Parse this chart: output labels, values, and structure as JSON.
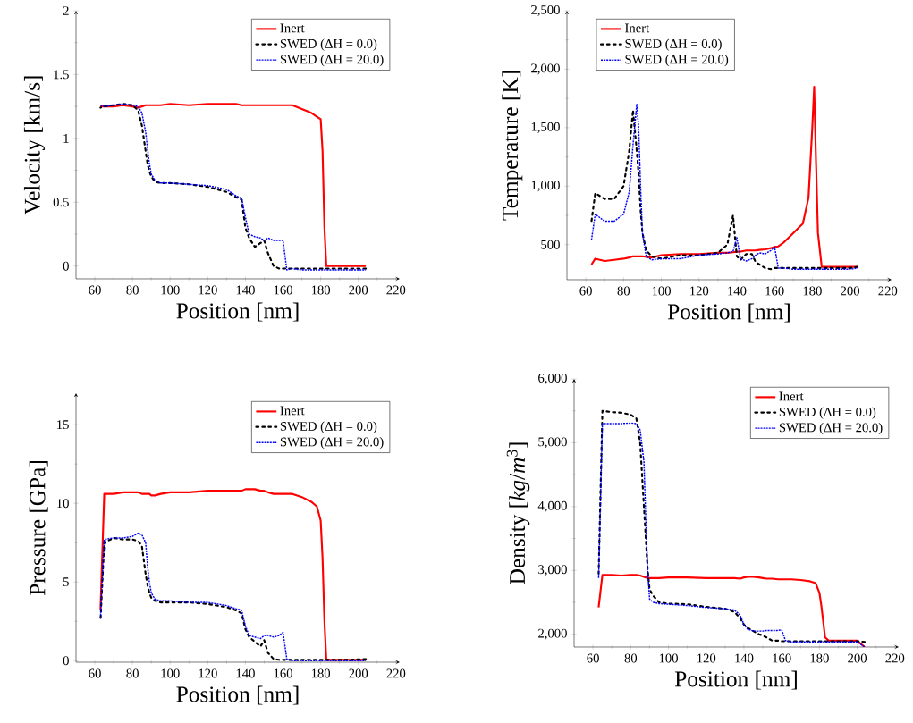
{
  "chart_data": [
    {
      "type": "line",
      "xlabel": "Position [nm]",
      "ylabel": "Velocity [km/s]",
      "xlim": [
        50,
        222
      ],
      "ylim": [
        -0.1,
        2
      ],
      "xticks": [
        60,
        80,
        100,
        120,
        140,
        160,
        180,
        200,
        220
      ],
      "yticks": [
        0,
        0.5,
        1,
        1.5,
        2
      ],
      "legend": "top right",
      "x": [
        63,
        65,
        70,
        75,
        80,
        83,
        85,
        87,
        88,
        89,
        90,
        92,
        95,
        100,
        110,
        120,
        130,
        135,
        138,
        140,
        142,
        145,
        148,
        150,
        152,
        155,
        158,
        160,
        162,
        165,
        170,
        175,
        178,
        180,
        181,
        182,
        183,
        185,
        190,
        195,
        200,
        204
      ],
      "series": [
        {
          "name": "Inert",
          "color": "#ff0000",
          "line_style": "solid",
          "values": [
            1.25,
            1.25,
            1.25,
            1.26,
            1.25,
            1.24,
            1.25,
            1.26,
            1.26,
            1.26,
            1.26,
            1.26,
            1.26,
            1.27,
            1.26,
            1.27,
            1.27,
            1.27,
            1.26,
            1.26,
            1.26,
            1.26,
            1.26,
            1.26,
            1.26,
            1.26,
            1.26,
            1.26,
            1.26,
            1.26,
            1.23,
            1.2,
            1.17,
            1.15,
            0.9,
            0.3,
            0.0,
            0.0,
            0.0,
            0.0,
            0.0,
            0.0
          ]
        },
        {
          "name": "SWED (ΔH = 0.0)",
          "color": "#000000",
          "line_style": "dashed",
          "values": [
            1.24,
            1.25,
            1.26,
            1.27,
            1.26,
            1.22,
            1.1,
            0.9,
            0.8,
            0.74,
            0.7,
            0.66,
            0.65,
            0.65,
            0.64,
            0.62,
            0.58,
            0.54,
            0.52,
            0.3,
            0.22,
            0.15,
            0.18,
            0.2,
            0.1,
            0.0,
            -0.02,
            -0.02,
            -0.02,
            -0.02,
            -0.02,
            -0.02,
            -0.02,
            -0.02,
            -0.02,
            -0.02,
            -0.02,
            -0.02,
            -0.02,
            -0.02,
            -0.02,
            -0.02
          ]
        },
        {
          "name": "SWED (ΔH = 20.0)",
          "color": "#0000ff",
          "line_style": "dotted",
          "values": [
            1.26,
            1.25,
            1.26,
            1.27,
            1.26,
            1.25,
            1.2,
            1.05,
            0.92,
            0.8,
            0.72,
            0.67,
            0.65,
            0.65,
            0.64,
            0.63,
            0.6,
            0.55,
            0.53,
            0.38,
            0.25,
            0.23,
            0.22,
            0.2,
            0.22,
            0.2,
            0.2,
            0.2,
            -0.03,
            -0.02,
            -0.03,
            -0.03,
            -0.03,
            -0.03,
            -0.03,
            -0.03,
            -0.03,
            -0.03,
            -0.03,
            -0.03,
            -0.03,
            -0.03
          ]
        }
      ]
    },
    {
      "type": "line",
      "xlabel": "Position [nm]",
      "ylabel": "Temperature [K]",
      "xlim": [
        50,
        222
      ],
      "ylim": [
        200,
        2500
      ],
      "xticks": [
        60,
        80,
        100,
        120,
        140,
        160,
        180,
        200,
        220
      ],
      "yticks": [
        500,
        {
          "value": 1000,
          "label": "1,000"
        },
        {
          "value": 1500,
          "label": "1,500"
        },
        {
          "value": 2000,
          "label": "2,000"
        },
        {
          "value": 2500,
          "label": "2,500"
        }
      ],
      "legend": "top left",
      "x": [
        63,
        65,
        70,
        75,
        80,
        83,
        85,
        87,
        88,
        89,
        90,
        92,
        95,
        100,
        110,
        120,
        130,
        135,
        138,
        140,
        142,
        145,
        148,
        150,
        152,
        155,
        158,
        160,
        162,
        165,
        170,
        175,
        178,
        180,
        181,
        182,
        183,
        185,
        190,
        195,
        200,
        204
      ],
      "series": [
        {
          "name": "Inert",
          "color": "#ff0000",
          "line_style": "solid",
          "values": [
            330,
            380,
            360,
            370,
            380,
            390,
            400,
            400,
            400,
            400,
            400,
            395,
            390,
            410,
            420,
            420,
            430,
            430,
            435,
            440,
            440,
            450,
            450,
            450,
            455,
            460,
            470,
            480,
            485,
            520,
            600,
            680,
            900,
            1500,
            1850,
            1200,
            600,
            310,
            310,
            310,
            310,
            310
          ]
        },
        {
          "name": "SWED (ΔH = 0.0)",
          "color": "#000000",
          "line_style": "dashed",
          "values": [
            700,
            940,
            890,
            890,
            1000,
            1300,
            1650,
            1300,
            1100,
            800,
            600,
            450,
            400,
            380,
            410,
            410,
            430,
            500,
            750,
            400,
            370,
            420,
            420,
            350,
            330,
            300,
            290,
            300,
            300,
            300,
            300,
            300,
            300,
            300,
            300,
            300,
            300,
            300,
            300,
            300,
            300,
            310
          ]
        },
        {
          "name": "SWED (ΔH = 20.0)",
          "color": "#0000ff",
          "line_style": "dotted",
          "values": [
            540,
            760,
            700,
            700,
            760,
            950,
            1350,
            1700,
            1500,
            1000,
            600,
            400,
            370,
            380,
            380,
            410,
            420,
            430,
            440,
            560,
            380,
            360,
            380,
            410,
            430,
            420,
            450,
            480,
            300,
            300,
            290,
            290,
            290,
            290,
            290,
            290,
            290,
            290,
            290,
            290,
            290,
            300
          ]
        }
      ]
    },
    {
      "type": "line",
      "xlabel": "Position [nm]",
      "ylabel": "Pressure [GPa]",
      "xlim": [
        50,
        222
      ],
      "ylim": [
        -0.1,
        17
      ],
      "xticks": [
        60,
        80,
        100,
        120,
        140,
        160,
        180,
        200,
        220
      ],
      "yticks": [
        0,
        5,
        10,
        15
      ],
      "legend": "top right",
      "x": [
        63,
        65,
        70,
        75,
        80,
        83,
        85,
        87,
        88,
        89,
        90,
        92,
        95,
        100,
        110,
        120,
        130,
        135,
        138,
        140,
        142,
        145,
        148,
        150,
        152,
        155,
        158,
        160,
        162,
        165,
        170,
        175,
        178,
        180,
        181,
        182,
        183,
        185,
        190,
        195,
        200,
        204
      ],
      "series": [
        {
          "name": "Inert",
          "color": "#ff0000",
          "line_style": "solid",
          "values": [
            3.2,
            10.6,
            10.6,
            10.7,
            10.7,
            10.7,
            10.6,
            10.6,
            10.6,
            10.6,
            10.5,
            10.5,
            10.6,
            10.7,
            10.7,
            10.8,
            10.8,
            10.8,
            10.8,
            10.9,
            10.9,
            10.9,
            10.8,
            10.8,
            10.7,
            10.6,
            10.6,
            10.6,
            10.6,
            10.6,
            10.4,
            10.1,
            9.8,
            8.9,
            6.5,
            2.5,
            0.05,
            0.05,
            0.05,
            0.05,
            0.05,
            0.05
          ]
        },
        {
          "name": "SWED (ΔH = 0.0)",
          "color": "#000000",
          "line_style": "dashed",
          "x": [
            63,
            65,
            70,
            75,
            80,
            83,
            85,
            87,
            88,
            89,
            90,
            92,
            95,
            100,
            110,
            120,
            130,
            135,
            138,
            140,
            142,
            145,
            148,
            150,
            152,
            155,
            158,
            160,
            162,
            165,
            170,
            175,
            178,
            180,
            181,
            182,
            183,
            185,
            190,
            195,
            204
          ],
          "values": [
            2.5,
            7.5,
            7.8,
            7.7,
            7.7,
            7.6,
            7.3,
            5.5,
            4.8,
            4.3,
            4.0,
            3.8,
            3.7,
            3.7,
            3.7,
            3.6,
            3.4,
            3.2,
            3.0,
            2.0,
            1.5,
            1.2,
            0.9,
            1.3,
            0.5,
            0.1,
            0.05,
            0.05,
            0.05,
            0.05,
            0.05,
            0.05,
            0.05,
            0.05,
            0.05,
            0.05,
            0.05,
            0.05,
            0.05,
            0.05,
            0.1
          ]
        },
        {
          "name": "SWED (ΔH = 20.0)",
          "color": "#0000ff",
          "line_style": "dotted",
          "values": [
            2.7,
            7.7,
            7.8,
            7.8,
            7.9,
            8.1,
            8.0,
            7.5,
            6.0,
            5.0,
            4.3,
            3.9,
            3.8,
            3.8,
            3.7,
            3.7,
            3.5,
            3.3,
            3.2,
            2.2,
            1.6,
            1.5,
            1.4,
            1.6,
            1.6,
            1.5,
            1.6,
            1.8,
            0.1,
            0.0,
            0.0,
            0.0,
            0.0,
            0.0,
            0.0,
            0.0,
            0.0,
            0.0,
            0.0,
            0.0,
            0.0,
            0.0
          ]
        }
      ]
    },
    {
      "type": "line",
      "xlabel": "Position [nm]",
      "ylabel": "Density [*kg*/*m*$^{3}$]",
      "xlim": [
        50,
        222
      ],
      "ylim": [
        1800,
        6000
      ],
      "xticks": [
        60,
        80,
        100,
        120,
        140,
        160,
        180,
        200,
        220
      ],
      "yticks": [
        {
          "value": 2000,
          "label": "2,000"
        },
        {
          "value": 3000,
          "label": "3,000"
        },
        {
          "value": 4000,
          "label": "4,000"
        },
        {
          "value": 5000,
          "label": "5,000"
        },
        {
          "value": 6000,
          "label": "6,000"
        }
      ],
      "legend": "top right",
      "x": [
        63,
        65,
        70,
        75,
        80,
        83,
        85,
        87,
        88,
        89,
        90,
        92,
        95,
        100,
        110,
        120,
        130,
        135,
        138,
        140,
        142,
        145,
        148,
        150,
        152,
        155,
        158,
        160,
        162,
        165,
        170,
        175,
        178,
        180,
        181,
        182,
        183,
        185,
        190,
        195,
        200,
        204
      ],
      "series": [
        {
          "name": "Inert",
          "color": "#ff0000",
          "line_style": "solid",
          "values": [
            2420,
            2930,
            2930,
            2920,
            2930,
            2930,
            2920,
            2900,
            2890,
            2880,
            2880,
            2880,
            2880,
            2890,
            2890,
            2880,
            2880,
            2880,
            2870,
            2890,
            2900,
            2900,
            2890,
            2880,
            2870,
            2870,
            2860,
            2860,
            2860,
            2860,
            2850,
            2830,
            2800,
            2650,
            2450,
            2200,
            1950,
            1900,
            1900,
            1900,
            1900,
            1800
          ]
        },
        {
          "name": "SWED (ΔH = 0.0)",
          "color": "#000000",
          "line_style": "dashed",
          "values": [
            2950,
            5500,
            5480,
            5470,
            5440,
            5380,
            5000,
            4000,
            3500,
            3000,
            2700,
            2600,
            2500,
            2480,
            2470,
            2430,
            2400,
            2350,
            2250,
            2150,
            2100,
            2050,
            2000,
            1980,
            1950,
            1900,
            1900,
            1890,
            1890,
            1890,
            1890,
            1890,
            1890,
            1890,
            1890,
            1890,
            1890,
            1890,
            1890,
            1890,
            1890,
            1880
          ]
        },
        {
          "name": "SWED (ΔH = 20.0)",
          "color": "#0000ff",
          "line_style": "dotted",
          "values": [
            2880,
            5300,
            5300,
            5300,
            5310,
            5300,
            5200,
            4700,
            3800,
            3000,
            2550,
            2500,
            2480,
            2470,
            2450,
            2420,
            2400,
            2380,
            2300,
            2150,
            2080,
            2050,
            2050,
            2050,
            2060,
            2060,
            2060,
            2070,
            1900,
            1880,
            1880,
            1880,
            1880,
            1880,
            1880,
            1880,
            1880,
            1880,
            1880,
            1880,
            1880,
            1800
          ]
        }
      ]
    }
  ]
}
